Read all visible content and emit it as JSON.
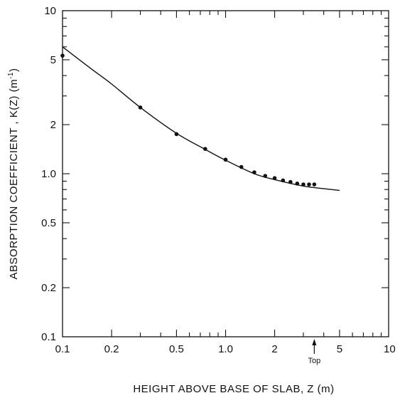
{
  "chart_data": {
    "type": "scatter",
    "xlabel": "HEIGHT ABOVE BASE OF SLAB, Z (m)",
    "ylabel_main": "ABSORPTION COEFFICIENT , K(Z) (m",
    "ylabel_sup": "-1",
    "ylabel_close": ")",
    "x_scale": "log",
    "y_scale": "log",
    "xlim": [
      0.1,
      10
    ],
    "ylim": [
      0.1,
      10
    ],
    "x_ticks": [
      {
        "value": 0.1,
        "label": "0.1"
      },
      {
        "value": 0.2,
        "label": "0.2"
      },
      {
        "value": 0.5,
        "label": "0.5"
      },
      {
        "value": 1,
        "label": "1.0"
      },
      {
        "value": 2,
        "label": "2"
      },
      {
        "value": 5,
        "label": "5"
      },
      {
        "value": 10,
        "label": "10"
      }
    ],
    "y_ticks": [
      {
        "value": 0.1,
        "label": "0.1"
      },
      {
        "value": 0.2,
        "label": "0.2"
      },
      {
        "value": 0.5,
        "label": "0.5"
      },
      {
        "value": 1,
        "label": "1.0"
      },
      {
        "value": 2,
        "label": "2"
      },
      {
        "value": 5,
        "label": "5"
      },
      {
        "value": 10,
        "label": "10"
      }
    ],
    "grid": false,
    "series": [
      {
        "kind": "points",
        "x": [
          0.1,
          0.3,
          0.5,
          0.75,
          1.0,
          1.25,
          1.5,
          1.75,
          2.0,
          2.25,
          2.5,
          2.75,
          3.0,
          3.25,
          3.5
        ],
        "y": [
          5.3,
          2.55,
          1.75,
          1.42,
          1.22,
          1.1,
          1.02,
          0.97,
          0.94,
          0.91,
          0.89,
          0.87,
          0.86,
          0.86,
          0.86
        ]
      },
      {
        "kind": "curve",
        "x": [
          0.1,
          0.15,
          0.2,
          0.3,
          0.5,
          0.75,
          1.0,
          1.5,
          2.0,
          3.0,
          4.0,
          5.0
        ],
        "y": [
          6.0,
          4.4,
          3.55,
          2.55,
          1.77,
          1.41,
          1.21,
          1.0,
          0.92,
          0.84,
          0.81,
          0.79
        ]
      }
    ],
    "annotations": [
      {
        "text": "Top",
        "x": 3.5,
        "arrow": "up"
      }
    ]
  }
}
